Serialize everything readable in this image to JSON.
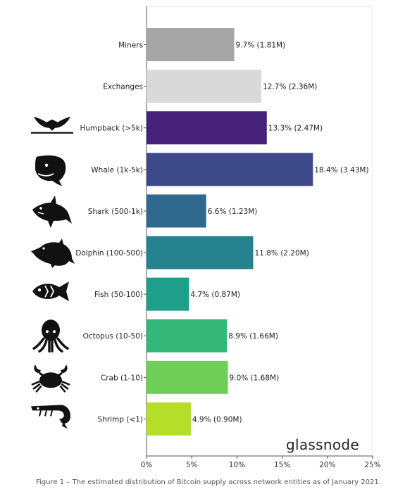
{
  "brand": "glassnode",
  "caption": "Figure 1 – The estimated distribution of Bitcoin supply across network entities as of January 2021.",
  "chart_data": {
    "type": "bar",
    "orientation": "horizontal",
    "categories": [
      "Miners",
      "Exchanges",
      "Humpback (>5k)",
      "Whale (1k-5k)",
      "Shark (500-1k)",
      "Dolphin (100-500)",
      "Fish (50-100)",
      "Octopus (10-50)",
      "Crab (1-10)",
      "Shrimp (<1)"
    ],
    "values": [
      9.7,
      12.7,
      13.3,
      18.4,
      6.6,
      11.8,
      4.7,
      8.9,
      9.0,
      4.9
    ],
    "data_labels": [
      "9.7% (1.81M)",
      "12.7% (2.36M)",
      "13.3% (2.47M)",
      "18.4% (3.43M)",
      "6.6% (1.23M)",
      "11.8% (2.20M)",
      "4.7% (0.87M)",
      "8.9% (1.66M)",
      "9.0% (1.68M)",
      "4.9% (0.90M)"
    ],
    "colors": [
      "#a6a6a6",
      "#d9d9d9",
      "#45217a",
      "#3e4989",
      "#31688e",
      "#26828e",
      "#1f9e89",
      "#35b779",
      "#6ece58",
      "#b5de2b"
    ],
    "icons": [
      null,
      null,
      "whale-tail-icon",
      "whale-icon",
      "shark-icon",
      "dolphin-icon",
      "fish-icon",
      "octopus-icon",
      "crab-icon",
      "shrimp-icon"
    ],
    "xlim": [
      0,
      25
    ],
    "xticks": [
      0,
      5,
      10,
      15,
      20,
      25
    ],
    "xtick_labels": [
      "0%",
      "5%",
      "10%",
      "15%",
      "20%",
      "25%"
    ],
    "grid": false
  }
}
